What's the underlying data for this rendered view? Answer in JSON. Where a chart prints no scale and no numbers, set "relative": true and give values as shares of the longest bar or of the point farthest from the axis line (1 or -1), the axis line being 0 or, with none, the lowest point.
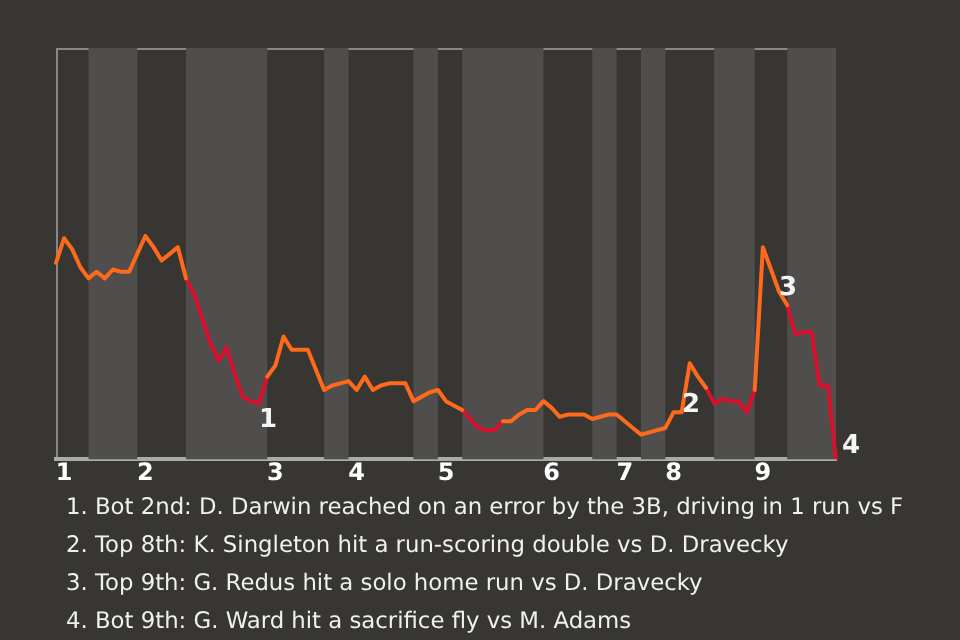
{
  "chart_data": {
    "type": "line",
    "relative": true,
    "marker": "none",
    "legend": false,
    "grid": false,
    "categories": [
      null,
      "1",
      null,
      null,
      null,
      null,
      null,
      null,
      null,
      null,
      null,
      "2",
      null,
      null,
      null,
      null,
      null,
      null,
      null,
      null,
      null,
      null,
      null,
      null,
      null,
      null,
      null,
      "3",
      null,
      null,
      null,
      null,
      null,
      null,
      null,
      null,
      null,
      "4",
      null,
      null,
      null,
      null,
      null,
      null,
      null,
      null,
      null,
      null,
      "5",
      null,
      null,
      null,
      null,
      null,
      null,
      null,
      null,
      null,
      null,
      null,
      null,
      "6",
      null,
      null,
      null,
      null,
      null,
      null,
      null,
      null,
      "7",
      null,
      null,
      null,
      null,
      null,
      "8",
      null,
      null,
      null,
      null,
      null,
      null,
      null,
      null,
      null,
      null,
      "9",
      null,
      null,
      null,
      null,
      null,
      null,
      null,
      null,
      null
    ],
    "series": [
      {
        "color": "#ff6a1a",
        "values": [
          0.88,
          0.99,
          0.94,
          0.86,
          0.81,
          0.84,
          0.81,
          0.85,
          0.84,
          0.84,
          0.92,
          1,
          0.95,
          0.89,
          0.92,
          0.95,
          0.81,
          null,
          null,
          null,
          null,
          null,
          null,
          null,
          null,
          null,
          0.37,
          0.42,
          0.55,
          0.49,
          0.49,
          0.49,
          0.4,
          0.31,
          0.33,
          0.34,
          0.35,
          0.31,
          0.37,
          0.31,
          0.33,
          0.34,
          0.34,
          0.34,
          0.26,
          0.28,
          0.3,
          0.31,
          0.26,
          0.24,
          0.22,
          null,
          null,
          null,
          null,
          0.17,
          0.17,
          0.2,
          0.22,
          0.22,
          0.26,
          0.23,
          0.19,
          0.2,
          0.2,
          0.2,
          0.18,
          0.19,
          0.2,
          0.2,
          0.17,
          0.14,
          0.11,
          0.12,
          0.13,
          0.14,
          0.21,
          0.21,
          0.43,
          0.37,
          0.32,
          null,
          null,
          null,
          null,
          null,
          0.31,
          0.95,
          0.85,
          0.75,
          0.69,
          null,
          null,
          null,
          null,
          null,
          null
        ]
      },
      {
        "color": "#d8102c",
        "values": [
          null,
          null,
          null,
          null,
          null,
          null,
          null,
          null,
          null,
          null,
          null,
          null,
          null,
          null,
          null,
          null,
          0.81,
          0.74,
          0.63,
          0.52,
          0.44,
          0.5,
          0.38,
          0.28,
          0.26,
          0.25,
          0.37,
          null,
          null,
          null,
          null,
          null,
          null,
          null,
          null,
          null,
          null,
          null,
          null,
          null,
          null,
          null,
          null,
          null,
          null,
          null,
          null,
          null,
          null,
          null,
          0.22,
          0.18,
          0.14,
          0.13,
          0.13,
          0.17,
          null,
          null,
          null,
          null,
          null,
          null,
          null,
          null,
          null,
          null,
          null,
          null,
          null,
          null,
          null,
          null,
          null,
          null,
          null,
          null,
          null,
          null,
          null,
          null,
          0.32,
          0.25,
          0.27,
          0.26,
          0.26,
          0.21,
          0.31,
          null,
          null,
          null,
          0.69,
          0.56,
          0.57,
          0.57,
          0.33,
          0.33,
          0
        ]
      }
    ],
    "annotations": [
      {
        "text": "1",
        "y": 0.26
      },
      {
        "text": "2",
        "y": 0.32
      },
      "3",
      "4",
      "1. Bot 2nd: D. Darwin reached on an error by the 3B, driving in 1 run vs F",
      "2. Top 8th: K. Singleton hit a run-scoring double vs D. Dravecky",
      "3. Top 9th: G. Redus hit a solo home run vs D. Dravecky",
      "4. Bot 9th: G. Ward hit a sacrifice fly vs M. Adams"
    ]
  }
}
